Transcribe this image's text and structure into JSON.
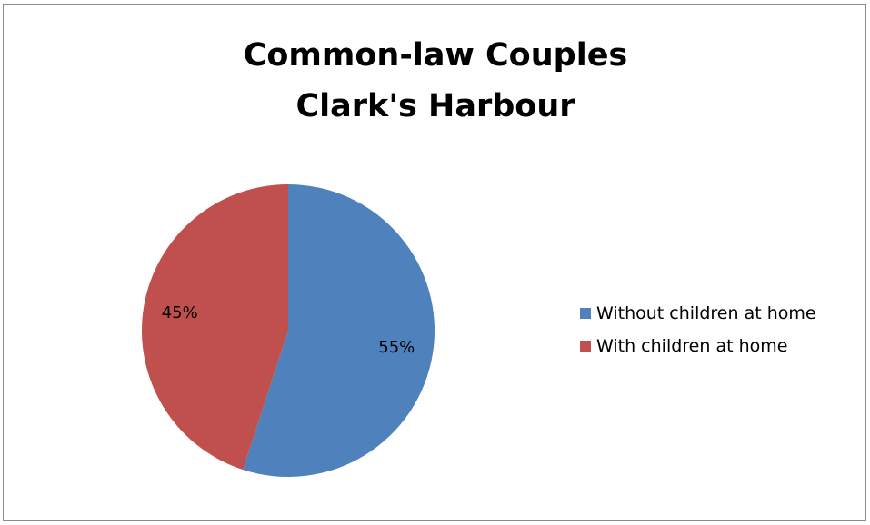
{
  "chart_data": {
    "type": "pie",
    "title": [
      "Common-law Couples",
      "Clark's Harbour"
    ],
    "categories": [
      "Without children at home",
      "With children at home"
    ],
    "values": [
      55,
      45
    ],
    "data_labels": [
      "55%",
      "45%"
    ],
    "colors": [
      "#4f81bd",
      "#c0504d"
    ],
    "legend_position": "right",
    "start_angle": "top",
    "direction": "clockwise"
  }
}
